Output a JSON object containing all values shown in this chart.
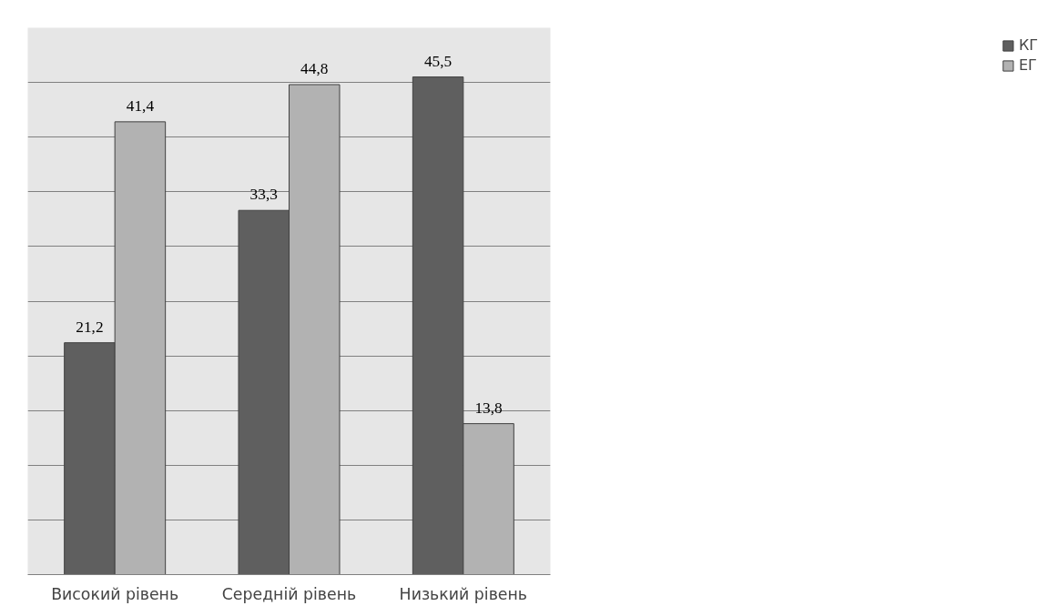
{
  "chart_data": {
    "type": "bar",
    "categories": [
      "Високий рівень",
      "Середній рівень",
      "Низький рівень"
    ],
    "series": [
      {
        "name": "КГ",
        "color": "#5f5f5f",
        "values": [
          21.2,
          33.3,
          45.5
        ],
        "value_labels": [
          "21,2",
          "33,3",
          "45,5"
        ]
      },
      {
        "name": "ЕГ",
        "color": "#b2b2b2",
        "values": [
          41.4,
          44.8,
          13.8
        ],
        "value_labels": [
          "41,4",
          "44,8",
          "13,8"
        ]
      }
    ],
    "ylim": [
      0,
      50
    ],
    "yticks": [
      {
        "value": 0,
        "label": null
      },
      {
        "value": 5,
        "label": null
      },
      {
        "value": 10,
        "label": null
      },
      {
        "value": 15,
        "label": null
      },
      {
        "value": 20,
        "label": null
      },
      {
        "value": 25,
        "label": null
      },
      {
        "value": 30,
        "label": null
      },
      {
        "value": 35,
        "label": null
      },
      {
        "value": 40,
        "label": null
      },
      {
        "value": 45,
        "label": null
      },
      {
        "value": 50,
        "label": null
      }
    ],
    "grid": "y",
    "legend": "right",
    "tick_labels": "x"
  }
}
